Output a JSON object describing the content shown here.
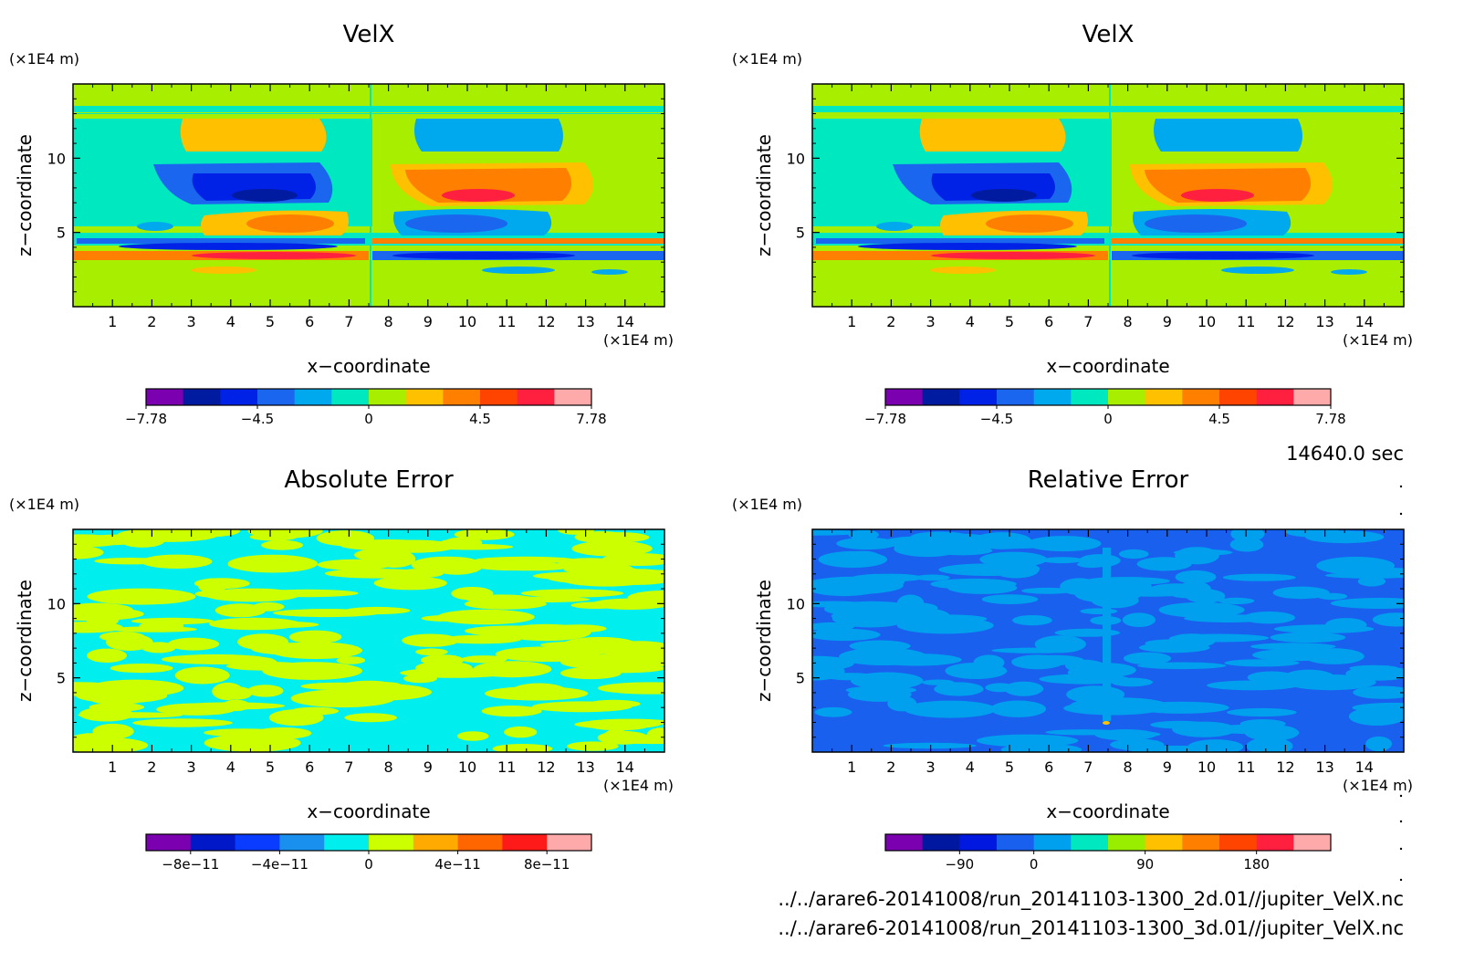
{
  "figure": {
    "time_label": "14640.0 sec",
    "files": [
      "../../arare6-20141008/run_20141103-1300_2d.01//jupiter_VelX.nc",
      "../../arare6-20141008/run_20141103-1300_3d.01//jupiter_VelX.nc"
    ]
  },
  "chart_data": [
    {
      "id": "velx-2d",
      "type": "heatmap",
      "title": "VelX",
      "xlabel": "x−coordinate",
      "ylabel": "z−coordinate",
      "x_unit": "(×1E4 m)",
      "y_unit": "(×1E4 m)",
      "xlim": [
        0,
        15
      ],
      "ylim": [
        0,
        15
      ],
      "x_ticks": [
        1,
        2,
        3,
        4,
        5,
        6,
        7,
        8,
        9,
        10,
        11,
        12,
        13,
        14
      ],
      "y_ticks": [
        5,
        10
      ],
      "field": "velx",
      "colorbar": {
        "colors": [
          "#7a00b0",
          "#001aa0",
          "#0022e6",
          "#1a66ee",
          "#00a8ee",
          "#00e8c0",
          "#a8ee00",
          "#ffc000",
          "#ff8000",
          "#ff4400",
          "#ff2040",
          "#ffaaaa"
        ],
        "bounds": [
          -7.78,
          -6.75,
          -5.62,
          -4.5,
          -3.37,
          -2.25,
          0,
          2.25,
          3.37,
          4.5,
          5.62,
          6.75,
          7.78
        ],
        "tick_values": [
          -7.78,
          -4.5,
          0,
          4.5,
          7.78
        ],
        "tick_labels": [
          "−7.78",
          "−4.5",
          "0",
          "4.5",
          "7.78"
        ]
      }
    },
    {
      "id": "velx-3d",
      "type": "heatmap",
      "title": "VelX",
      "xlabel": "x−coordinate",
      "ylabel": "z−coordinate",
      "x_unit": "(×1E4 m)",
      "y_unit": "(×1E4 m)",
      "xlim": [
        0,
        15
      ],
      "ylim": [
        0,
        15
      ],
      "x_ticks": [
        1,
        2,
        3,
        4,
        5,
        6,
        7,
        8,
        9,
        10,
        11,
        12,
        13,
        14
      ],
      "y_ticks": [
        5,
        10
      ],
      "field": "velx",
      "colorbar": {
        "colors": [
          "#7a00b0",
          "#001aa0",
          "#0022e6",
          "#1a66ee",
          "#00a8ee",
          "#00e8c0",
          "#a8ee00",
          "#ffc000",
          "#ff8000",
          "#ff4400",
          "#ff2040",
          "#ffaaaa"
        ],
        "bounds": [
          -7.78,
          -6.75,
          -5.62,
          -4.5,
          -3.37,
          -2.25,
          0,
          2.25,
          3.37,
          4.5,
          5.62,
          6.75,
          7.78
        ],
        "tick_values": [
          -7.78,
          -4.5,
          0,
          4.5,
          7.78
        ],
        "tick_labels": [
          "−7.78",
          "−4.5",
          "0",
          "4.5",
          "7.78"
        ]
      }
    },
    {
      "id": "absolute-error",
      "type": "heatmap",
      "title": "Absolute Error",
      "xlabel": "x−coordinate",
      "ylabel": "z−coordinate",
      "x_unit": "(×1E4 m)",
      "y_unit": "(×1E4 m)",
      "xlim": [
        0,
        15
      ],
      "ylim": [
        0,
        15
      ],
      "x_ticks": [
        1,
        2,
        3,
        4,
        5,
        6,
        7,
        8,
        9,
        10,
        11,
        12,
        13,
        14
      ],
      "y_ticks": [
        5,
        10
      ],
      "field": "abs",
      "colorbar": {
        "colors": [
          "#7a00b0",
          "#0018c8",
          "#0a3cff",
          "#1a90ee",
          "#00eeee",
          "#ccff00",
          "#ffaa00",
          "#ff6600",
          "#ff1a1a",
          "#ffaaaa"
        ],
        "bounds": [
          -1e-10,
          -8e-11,
          -6e-11,
          -4e-11,
          -2e-11,
          0,
          2e-11,
          4e-11,
          6e-11,
          8e-11,
          1e-10
        ],
        "tick_values": [
          -8e-11,
          -4e-11,
          0,
          4e-11,
          8e-11
        ],
        "tick_labels": [
          "−8e−11",
          "−4e−11",
          "0",
          "4e−11",
          "8e−11"
        ]
      }
    },
    {
      "id": "relative-error",
      "type": "heatmap",
      "title": "Relative Error",
      "xlabel": "x−coordinate",
      "ylabel": "z−coordinate",
      "x_unit": "(×1E4 m)",
      "y_unit": "(×1E4 m)",
      "xlim": [
        0,
        15
      ],
      "ylim": [
        0,
        15
      ],
      "x_ticks": [
        1,
        2,
        3,
        4,
        5,
        6,
        7,
        8,
        9,
        10,
        11,
        12,
        13,
        14
      ],
      "y_ticks": [
        5,
        10
      ],
      "field": "rel",
      "colorbar": {
        "colors": [
          "#7a00b0",
          "#0018a0",
          "#0018e0",
          "#1a60ee",
          "#00a0ee",
          "#00e8c0",
          "#99ee00",
          "#ffc000",
          "#ff8000",
          "#ff4400",
          "#ff2040",
          "#ffaaaa"
        ],
        "bounds": [
          -135,
          -112.5,
          -90,
          -45,
          0,
          22.5,
          45,
          90,
          112.5,
          135,
          180,
          202.5,
          210
        ],
        "tick_values": [
          -90,
          0,
          90,
          180
        ],
        "tick_labels": [
          "−90",
          "0",
          "90",
          "180"
        ]
      }
    }
  ]
}
